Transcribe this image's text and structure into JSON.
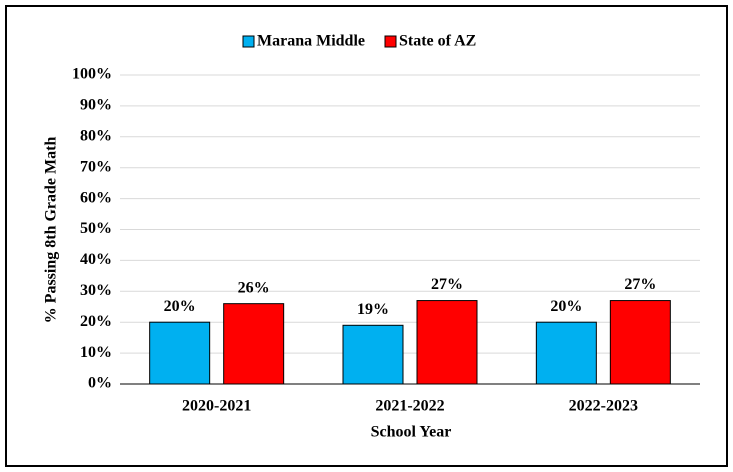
{
  "chart_data": {
    "type": "bar",
    "categories": [
      "2020-2021",
      "2021-2022",
      "2022-2023"
    ],
    "series": [
      {
        "name": "Marana Middle",
        "color": "#00b0f0",
        "values": [
          20,
          19,
          20
        ],
        "value_labels": [
          "20%",
          "19%",
          "20%"
        ]
      },
      {
        "name": "State of AZ",
        "color": "#ff0000",
        "values": [
          26,
          27,
          27
        ],
        "value_labels": [
          "26%",
          "27%",
          "27%"
        ]
      }
    ],
    "xlabel": "School Year",
    "ylabel": "% Passing 8th Grade Math",
    "ylim": [
      0,
      100
    ],
    "yticks": [
      {
        "value": 0,
        "label": "0%"
      },
      {
        "value": 10,
        "label": "10%"
      },
      {
        "value": 20,
        "label": "20%"
      },
      {
        "value": 30,
        "label": "30%"
      },
      {
        "value": 40,
        "label": "40%"
      },
      {
        "value": 50,
        "label": "50%"
      },
      {
        "value": 60,
        "label": "60%"
      },
      {
        "value": 70,
        "label": "70%"
      },
      {
        "value": 80,
        "label": "80%"
      },
      {
        "value": 90,
        "label": "90%"
      },
      {
        "value": 100,
        "label": "100%"
      }
    ],
    "grid": true,
    "legend": "top"
  }
}
